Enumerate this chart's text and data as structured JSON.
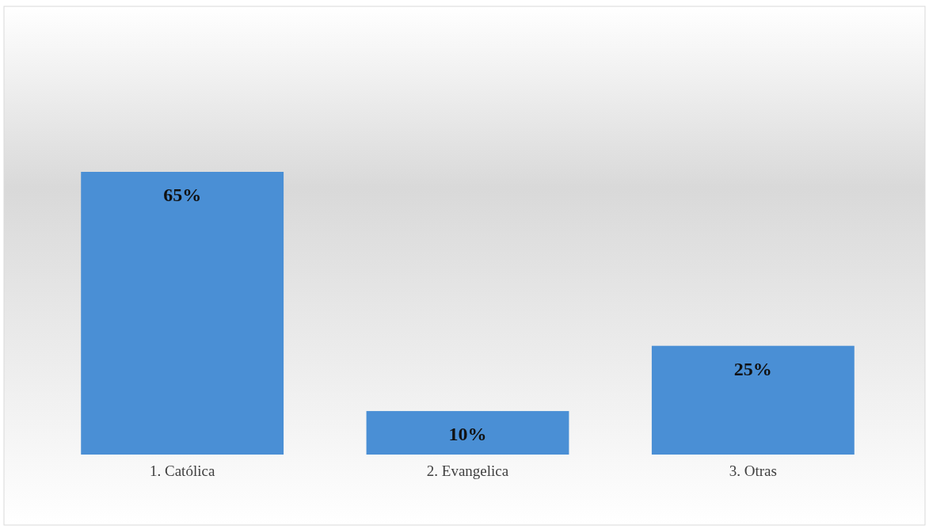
{
  "chart_data": {
    "type": "bar",
    "categories": [
      "1. Católica",
      "2. Evangelica",
      "3. Otras"
    ],
    "values": [
      65,
      10,
      25
    ],
    "color": "#4a8fd5",
    "value_labels": [
      "65%",
      "10%",
      "25%"
    ]
  }
}
